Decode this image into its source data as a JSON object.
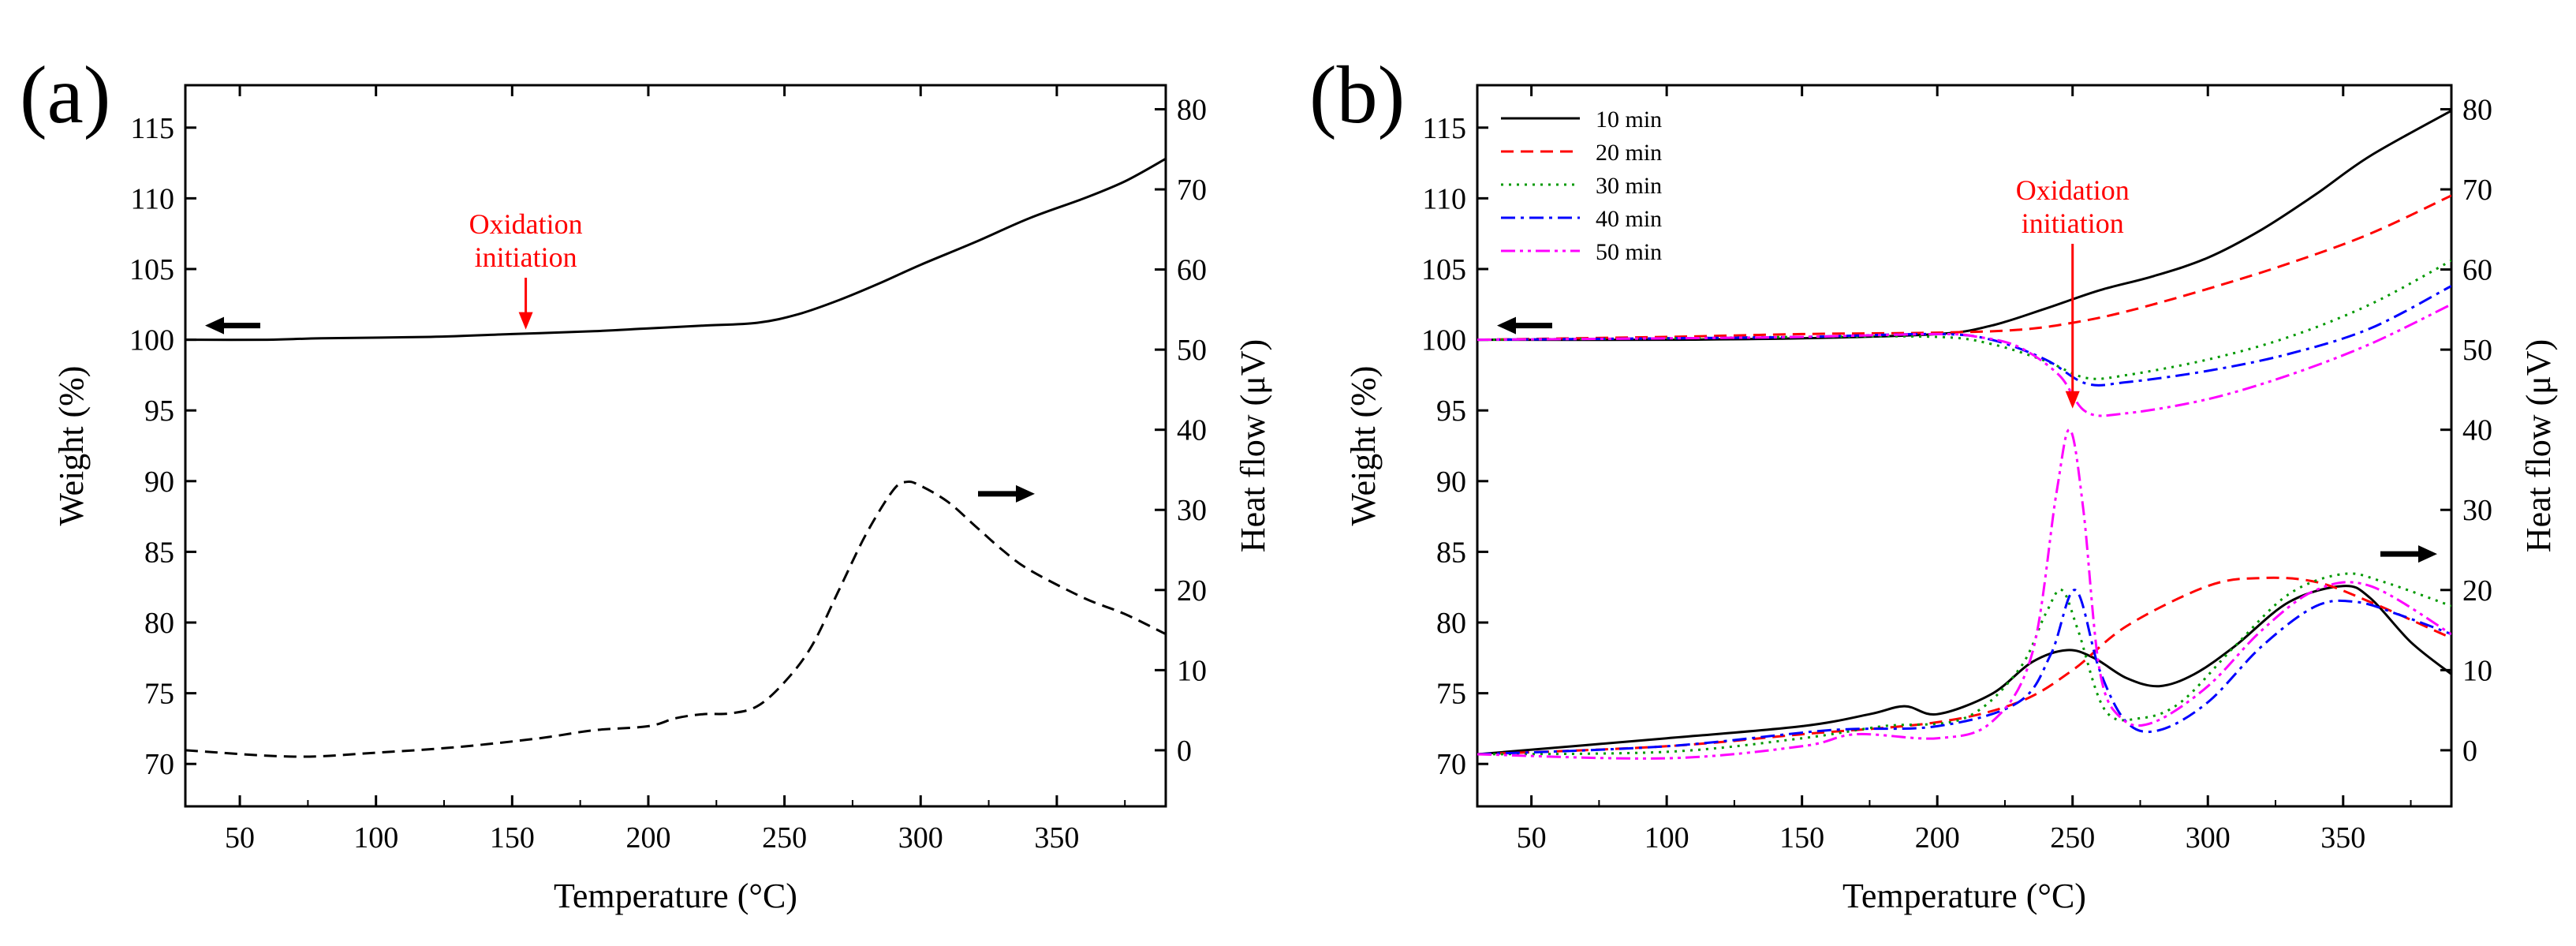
{
  "panels": [
    {
      "label": "(a)",
      "annotation": "Oxidation\ninitiation",
      "chart_data": {
        "type": "line",
        "xlabel": "Temperature (°C)",
        "ylabel": "Weight (%)",
        "ylabel_right": "Heat flow (μV)",
        "xlim": [
          30,
          390
        ],
        "ylim": [
          67,
          118
        ],
        "ylim_right": [
          -7,
          83
        ],
        "xticks": [
          50,
          100,
          150,
          200,
          250,
          300,
          350
        ],
        "yticks": [
          70,
          75,
          80,
          85,
          90,
          95,
          100,
          105,
          110,
          115
        ],
        "yticks_right": [
          0,
          10,
          20,
          30,
          40,
          50,
          60,
          70,
          80
        ],
        "annotation_x": 155,
        "series": [
          {
            "axis": "left",
            "color": "#000000",
            "dash": "solid",
            "x": [
              30,
              60,
              80,
              120,
              150,
              180,
              200,
              220,
              240,
              255,
              270,
              285,
              300,
              320,
              340,
              360,
              375,
              390
            ],
            "y": [
              100.0,
              100.0,
              100.1,
              100.2,
              100.4,
              100.6,
              100.8,
              101.0,
              101.2,
              101.8,
              102.8,
              104.0,
              105.3,
              106.9,
              108.6,
              110.0,
              111.2,
              112.8
            ]
          },
          {
            "axis": "right",
            "color": "#000000",
            "dash": "dashed",
            "x": [
              30,
              70,
              100,
              130,
              160,
              180,
              200,
              210,
              220,
              230,
              240,
              250,
              260,
              270,
              280,
              290,
              295,
              300,
              310,
              320,
              330,
              340,
              360,
              375,
              390
            ],
            "y": [
              0.0,
              -0.8,
              -0.3,
              0.4,
              1.5,
              2.5,
              3.0,
              4.0,
              4.5,
              4.6,
              5.5,
              8.5,
              13.0,
              20.0,
              27.0,
              32.5,
              33.5,
              33.0,
              31.0,
              28.0,
              25.0,
              22.5,
              19.0,
              17.0,
              14.5
            ]
          }
        ]
      }
    },
    {
      "label": "(b)",
      "annotation": "Oxidation\ninitiation",
      "legend_position": "top-left",
      "chart_data": {
        "type": "line",
        "xlabel": "Temperature (°C)",
        "ylabel": "Weight (%)",
        "ylabel_right": "Heat flow (μV)",
        "xlim": [
          30,
          390
        ],
        "ylim": [
          67,
          118
        ],
        "ylim_right": [
          -7,
          83
        ],
        "xticks": [
          50,
          100,
          150,
          200,
          250,
          300,
          350
        ],
        "yticks": [
          70,
          75,
          80,
          85,
          90,
          95,
          100,
          105,
          110,
          115
        ],
        "yticks_right": [
          0,
          10,
          20,
          30,
          40,
          50,
          60,
          70,
          80
        ],
        "annotation_x": 250,
        "series": [
          {
            "name": "10 min",
            "axis": "left",
            "color": "#000000",
            "dash": "solid",
            "x": [
              30,
              100,
              150,
              200,
              220,
              240,
              260,
              280,
              300,
              320,
              340,
              360,
              390
            ],
            "y": [
              100,
              100,
              100.1,
              100.4,
              101,
              102.2,
              103.5,
              104.5,
              105.8,
              107.8,
              110.3,
              113,
              116.2
            ]
          },
          {
            "name": "10 min",
            "axis": "right",
            "color": "#000000",
            "dash": "solid",
            "x": [
              30,
              100,
              150,
              175,
              188,
              200,
              220,
              235,
              248,
              258,
              270,
              282,
              295,
              310,
              330,
              350,
              360,
              375,
              390
            ],
            "y": [
              -0.5,
              1.5,
              3.0,
              4.5,
              5.5,
              4.5,
              7.0,
              11.0,
              12.5,
              11.5,
              9.0,
              8.0,
              9.5,
              13.0,
              18.5,
              20.5,
              19.0,
              13.5,
              9.5
            ]
          },
          {
            "name": "20 min",
            "axis": "left",
            "color": "#ff0000",
            "dash": "dashed",
            "x": [
              30,
              100,
              150,
              200,
              230,
              250,
              270,
              300,
              330,
              360,
              390
            ],
            "y": [
              100,
              100.2,
              100.4,
              100.5,
              100.7,
              101.2,
              102,
              103.6,
              105.4,
              107.5,
              110.2
            ]
          },
          {
            "name": "20 min",
            "axis": "right",
            "color": "#ff0000",
            "dash": "dashed",
            "x": [
              30,
              100,
              150,
              200,
              230,
              250,
              270,
              300,
              320,
              340,
              360,
              390
            ],
            "y": [
              -0.5,
              0.5,
              2.0,
              3.5,
              6.0,
              10.0,
              15.5,
              20.5,
              21.5,
              21.0,
              18.5,
              14.0
            ]
          },
          {
            "name": "30 min",
            "axis": "left",
            "color": "#009900",
            "dash": "dotted",
            "x": [
              30,
              100,
              150,
              200,
              220,
              240,
              255,
              270,
              300,
              330,
              360,
              390
            ],
            "y": [
              100,
              100.1,
              100.2,
              100.2,
              99.7,
              98.5,
              97.3,
              97.5,
              98.6,
              100.2,
              102.5,
              105.6
            ]
          },
          {
            "name": "30 min",
            "axis": "right",
            "color": "#009900",
            "dash": "dotted",
            "x": [
              30,
              100,
              150,
              180,
              210,
              230,
              240,
              246,
              252,
              262,
              275,
              290,
              310,
              330,
              350,
              365,
              390
            ],
            "y": [
              -0.5,
              -0.2,
              1.5,
              3.0,
              4.0,
              10.0,
              17.0,
              20.0,
              15.0,
              5.0,
              4.0,
              6.0,
              13.0,
              19.5,
              22.0,
              21.0,
              18.0
            ]
          },
          {
            "name": "40 min",
            "axis": "left",
            "color": "#0000ff",
            "dash": "dashdot",
            "x": [
              30,
              100,
              150,
              200,
              220,
              240,
              255,
              270,
              300,
              330,
              360,
              390
            ],
            "y": [
              100,
              100.1,
              100.2,
              100.4,
              100.0,
              98.6,
              96.9,
              97.0,
              97.8,
              99.0,
              100.8,
              103.8
            ]
          },
          {
            "name": "40 min",
            "axis": "right",
            "color": "#0000ff",
            "dash": "dashdot",
            "x": [
              30,
              100,
              160,
              200,
              230,
              242,
              251,
              260,
              270,
              282,
              300,
              320,
              340,
              355,
              370,
              390
            ],
            "y": [
              -0.5,
              0.5,
              2.5,
              3.0,
              6.0,
              12.0,
              20.0,
              10.0,
              3.5,
              2.5,
              6.0,
              13.0,
              18.0,
              18.5,
              17.0,
              14.5
            ]
          },
          {
            "name": "50 min",
            "axis": "left",
            "color": "#ff00ff",
            "dash": "dashdotdot",
            "x": [
              30,
              100,
              150,
              200,
              215,
              230,
              245,
              255,
              270,
              300,
              330,
              360,
              390
            ],
            "y": [
              100,
              100.1,
              100.2,
              100.4,
              100.2,
              99.5,
              97.5,
              94.9,
              94.8,
              95.8,
              97.5,
              99.7,
              102.5
            ]
          },
          {
            "name": "50 min",
            "axis": "right",
            "color": "#ff00ff",
            "dash": "dashdotdot",
            "x": [
              30,
              100,
              150,
              170,
              200,
              220,
              235,
              244,
              249,
              254,
              260,
              268,
              280,
              300,
              320,
              340,
              360,
              390
            ],
            "y": [
              -0.5,
              -1.0,
              0.5,
              2.0,
              1.5,
              3.5,
              12.0,
              32.0,
              40.0,
              30.0,
              10.0,
              4.0,
              3.5,
              8.0,
              15.0,
              20.0,
              20.5,
              14.5
            ]
          }
        ]
      }
    }
  ]
}
